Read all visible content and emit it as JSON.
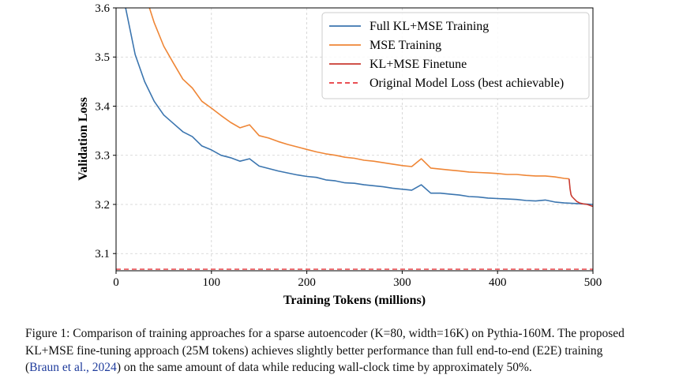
{
  "chart_data": {
    "type": "line",
    "xlabel": "Training Tokens (millions)",
    "ylabel": "Validation Loss",
    "xlim": [
      0,
      500
    ],
    "ylim": [
      3.065,
      3.6
    ],
    "xticks": [
      0,
      100,
      200,
      300,
      400,
      500
    ],
    "yticks": [
      3.1,
      3.2,
      3.3,
      3.4,
      3.5,
      3.6
    ],
    "xtick_labels": [
      "0",
      "100",
      "200",
      "300",
      "400",
      "500"
    ],
    "ytick_labels": [
      "3.1",
      "3.2",
      "3.3",
      "3.4",
      "3.5",
      "3.6"
    ],
    "grid": true,
    "legend_position": "top-right",
    "series": [
      {
        "name": "Full KL+MSE Training",
        "color": "#3b75af",
        "style": "solid",
        "x": [
          10,
          20,
          30,
          40,
          50,
          60,
          70,
          80,
          90,
          100,
          110,
          120,
          130,
          140,
          150,
          160,
          170,
          180,
          190,
          200,
          210,
          220,
          230,
          240,
          250,
          260,
          270,
          280,
          290,
          300,
          310,
          320,
          330,
          340,
          350,
          360,
          370,
          380,
          390,
          400,
          410,
          420,
          430,
          440,
          450,
          460,
          470,
          480,
          490,
          500
        ],
        "y": [
          3.6,
          3.505,
          3.45,
          3.41,
          3.382,
          3.365,
          3.348,
          3.338,
          3.319,
          3.311,
          3.3,
          3.295,
          3.288,
          3.293,
          3.278,
          3.273,
          3.268,
          3.264,
          3.26,
          3.257,
          3.255,
          3.25,
          3.248,
          3.244,
          3.243,
          3.24,
          3.238,
          3.236,
          3.233,
          3.231,
          3.229,
          3.24,
          3.223,
          3.223,
          3.221,
          3.219,
          3.216,
          3.215,
          3.213,
          3.212,
          3.211,
          3.21,
          3.208,
          3.207,
          3.209,
          3.205,
          3.203,
          3.202,
          3.201,
          3.2
        ]
      },
      {
        "name": "MSE Training",
        "color": "#ef8636",
        "style": "solid",
        "x": [
          35,
          40,
          50,
          60,
          70,
          80,
          90,
          100,
          110,
          120,
          130,
          140,
          150,
          160,
          170,
          180,
          190,
          200,
          210,
          220,
          230,
          240,
          250,
          260,
          270,
          280,
          290,
          300,
          310,
          320,
          330,
          340,
          350,
          360,
          370,
          380,
          390,
          400,
          410,
          420,
          430,
          440,
          450,
          460,
          470,
          475
        ],
        "y": [
          3.6,
          3.57,
          3.522,
          3.488,
          3.455,
          3.437,
          3.41,
          3.396,
          3.381,
          3.367,
          3.356,
          3.362,
          3.34,
          3.335,
          3.328,
          3.322,
          3.317,
          3.312,
          3.307,
          3.303,
          3.3,
          3.296,
          3.294,
          3.29,
          3.288,
          3.285,
          3.282,
          3.279,
          3.277,
          3.293,
          3.274,
          3.272,
          3.27,
          3.268,
          3.266,
          3.265,
          3.264,
          3.263,
          3.261,
          3.261,
          3.259,
          3.258,
          3.258,
          3.256,
          3.253,
          3.252
        ]
      },
      {
        "name": "KL+MSE Finetune",
        "color": "#c93a30",
        "style": "solid",
        "x": [
          475,
          476,
          477,
          478,
          480,
          483,
          486,
          490,
          494,
          497,
          500
        ],
        "y": [
          3.252,
          3.232,
          3.22,
          3.216,
          3.212,
          3.206,
          3.203,
          3.201,
          3.2,
          3.198,
          3.196
        ]
      },
      {
        "name": "Original Model Loss (best achievable)",
        "color": "#e8383d",
        "style": "dashed",
        "x": [
          0,
          500
        ],
        "y": [
          3.068,
          3.068
        ]
      }
    ]
  },
  "caption": {
    "line1": "Figure 1: Comparison of training approaches for a sparse autoencoder (K=80, width=16K) on Pythia-160M. The proposed",
    "line2": "KL+MSE fine-tuning approach (25M tokens) achieves slightly better performance than full end-to-end (E2E) training",
    "line3_cite": "Braun et al., 2024",
    "line3_rest": ") on the same amount of data while reducing wall-clock time by approximately 50%."
  }
}
